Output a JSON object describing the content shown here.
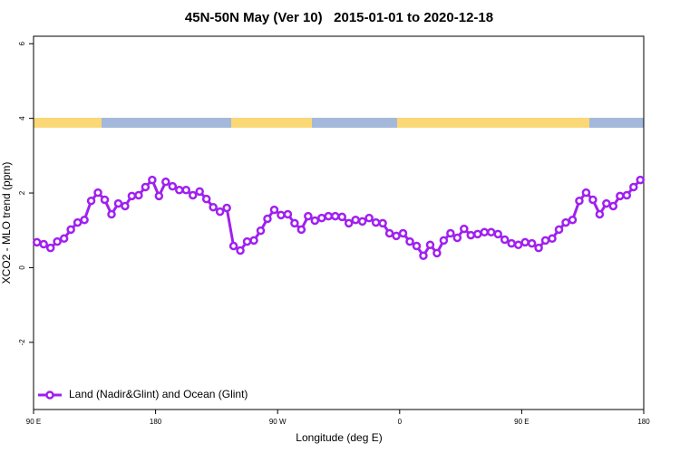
{
  "chart_data": {
    "type": "line",
    "title": "45N-50N May (Ver 10)   2015-01-01 to 2020-12-18",
    "xlabel": "Longitude (deg E)",
    "ylabel": "XCO2 - MLO trend (ppm)",
    "xlim": [
      90,
      540
    ],
    "xticks": [
      {
        "value": 90,
        "label": "90 E"
      },
      180,
      {
        "value": 270,
        "label": "90 W"
      },
      {
        "value": 360,
        "label": "0"
      },
      {
        "value": 450,
        "label": "90 E"
      },
      {
        "value": 540,
        "label": "180"
      }
    ],
    "ylim": [
      -3.8,
      6.2
    ],
    "yticks": [
      -2,
      0,
      2,
      4,
      6
    ],
    "legend": "bottom-left",
    "x": [
      92.5,
      97.5,
      102.5,
      107.5,
      112.5,
      117.5,
      122.5,
      127.5,
      132.5,
      137.5,
      142.5,
      147.5,
      152.5,
      157.5,
      162.5,
      167.5,
      172.5,
      177.5,
      182.5,
      187.5,
      192.5,
      197.5,
      202.5,
      207.5,
      212.5,
      217.5,
      222.5,
      227.5,
      232.5,
      237.5,
      242.5,
      247.5,
      252.5,
      257.5,
      262.5,
      267.5,
      272.5,
      277.5,
      282.5,
      287.5,
      292.5,
      297.5,
      302.5,
      307.5,
      312.5,
      317.5,
      322.5,
      327.5,
      332.5,
      337.5,
      342.5,
      347.5,
      352.5,
      357.5,
      362.5,
      367.5,
      372.5,
      377.5,
      382.5,
      387.5,
      392.5,
      397.5,
      402.5,
      407.5,
      412.5,
      417.5,
      422.5,
      427.5,
      432.5,
      437.5,
      442.5,
      447.5,
      452.5,
      457.5,
      462.5,
      467.5,
      472.5,
      477.5,
      482.5,
      487.5,
      492.5,
      497.5,
      502.5,
      507.5,
      512.5,
      517.5,
      522.5,
      527.5,
      532.5,
      537.5
    ],
    "series": [
      {
        "name": "Land (Nadir&Glint) and Ocean (Glint)",
        "color": "#a020f0",
        "values": [
          0.68,
          0.63,
          0.53,
          0.7,
          0.78,
          1.02,
          1.21,
          1.28,
          1.79,
          2.01,
          1.82,
          1.43,
          1.72,
          1.65,
          1.92,
          1.94,
          2.16,
          2.35,
          1.92,
          2.3,
          2.18,
          2.08,
          2.08,
          1.94,
          2.04,
          1.84,
          1.62,
          1.5,
          1.6,
          0.58,
          0.46,
          0.7,
          0.73,
          0.99,
          1.31,
          1.55,
          1.41,
          1.43,
          1.19,
          1.02,
          1.38,
          1.26,
          1.33,
          1.38,
          1.38,
          1.36,
          1.19,
          1.28,
          1.24,
          1.33,
          1.21,
          1.19,
          0.92,
          0.85,
          0.92,
          0.7,
          0.58,
          0.32,
          0.61,
          0.39,
          0.73,
          0.92,
          0.8,
          1.04,
          0.87,
          0.9,
          0.95,
          0.95,
          0.9,
          0.75,
          0.65,
          0.61,
          0.68,
          0.65,
          0.53,
          0.73,
          0.78,
          1.02,
          1.21,
          1.28,
          1.79,
          2.01,
          1.82,
          1.43,
          1.72,
          1.65,
          1.92,
          1.94,
          2.16,
          2.35
        ]
      }
    ]
  }
}
